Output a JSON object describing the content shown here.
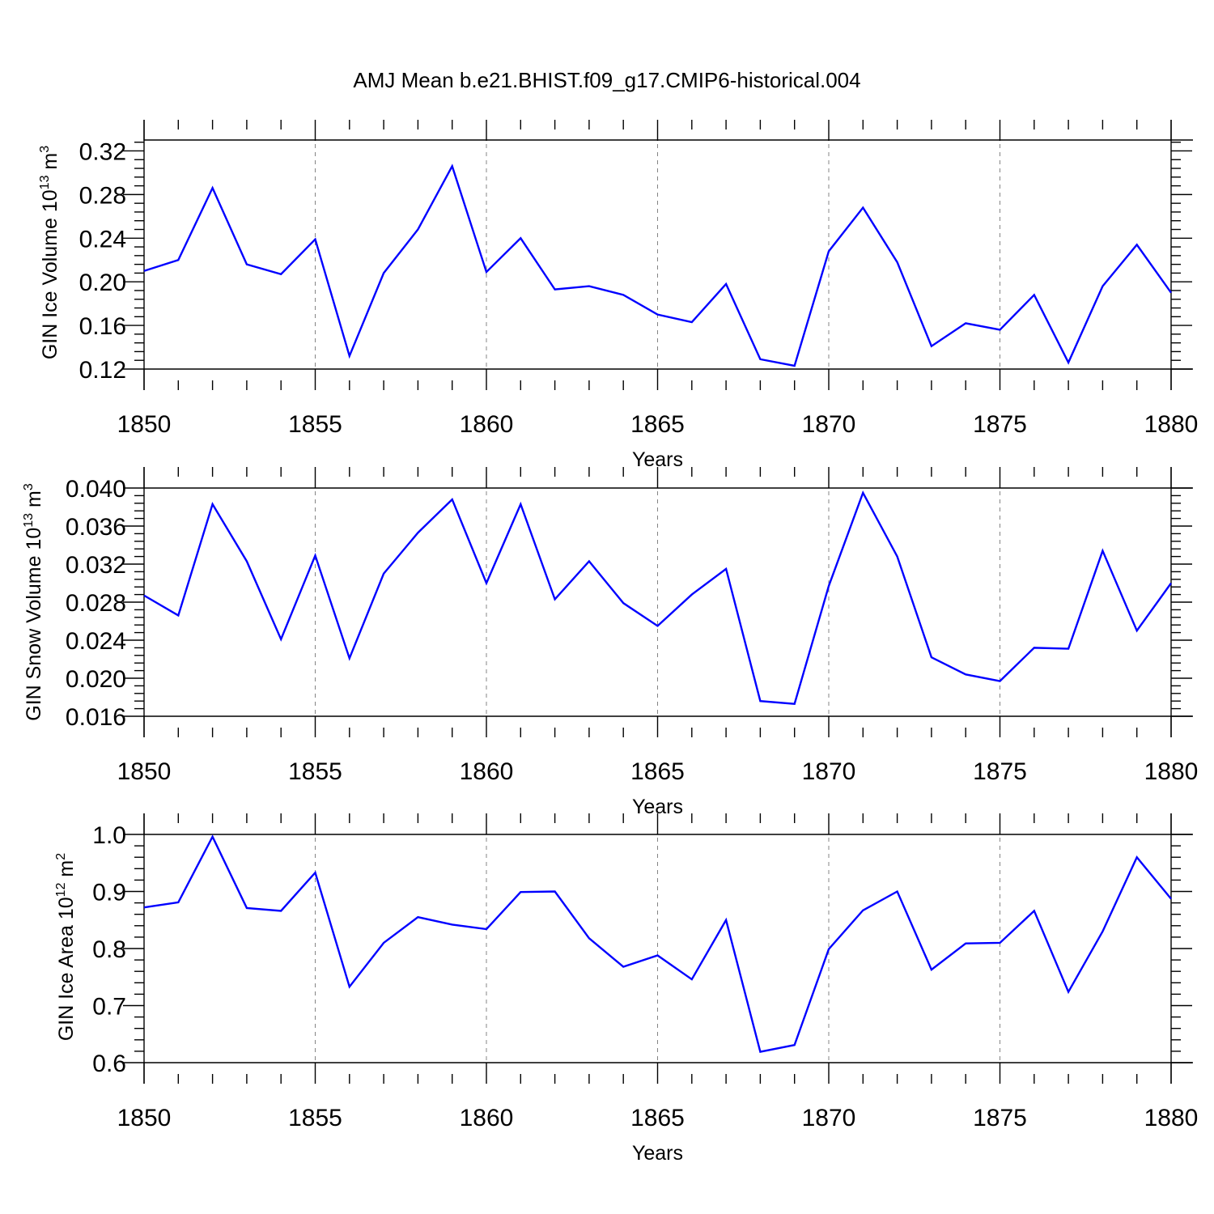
{
  "figure": {
    "title": "AMJ Mean b.e21.BHIST.f09_g17.CMIP6-historical.004"
  },
  "chart_data": [
    {
      "type": "line",
      "title": "",
      "xlabel": "Years",
      "ylabel": "GIN Ice Volume",
      "ylabel_scale": "10",
      "ylabel_exp": "13",
      "ylabel_unit": "m",
      "ylabel_unit_exp": "3",
      "xlim": [
        1850,
        1880
      ],
      "ylim": [
        0.12,
        0.33
      ],
      "x_ticks": [
        1850,
        1855,
        1860,
        1865,
        1870,
        1875,
        1880
      ],
      "x_tick_labels": [
        "1850",
        "1855",
        "1860",
        "1865",
        "1870",
        "1875",
        "1880"
      ],
      "y_ticks": [
        0.12,
        0.16,
        0.2,
        0.24,
        0.28,
        0.32
      ],
      "y_tick_labels": [
        "0.12",
        "0.16",
        "0.20",
        "0.24",
        "0.28",
        "0.32"
      ],
      "grid": "vertical dashed",
      "series": [
        {
          "name": "GIN Ice Volume",
          "color": "#0000ff",
          "x": [
            1850,
            1851,
            1852,
            1853,
            1854,
            1855,
            1856,
            1857,
            1858,
            1859,
            1860,
            1861,
            1862,
            1863,
            1864,
            1865,
            1866,
            1867,
            1868,
            1869,
            1870,
            1871,
            1872,
            1873,
            1874,
            1875,
            1876,
            1877,
            1878,
            1879,
            1880
          ],
          "values": [
            0.21,
            0.22,
            0.286,
            0.216,
            0.207,
            0.239,
            0.132,
            0.208,
            0.248,
            0.306,
            0.209,
            0.24,
            0.193,
            0.196,
            0.188,
            0.17,
            0.163,
            0.198,
            0.129,
            0.123,
            0.228,
            0.268,
            0.218,
            0.141,
            0.162,
            0.156,
            0.188,
            0.126,
            0.196,
            0.234,
            0.19
          ]
        }
      ]
    },
    {
      "type": "line",
      "title": "",
      "xlabel": "Years",
      "ylabel": "GIN Snow Volume",
      "ylabel_scale": "10",
      "ylabel_exp": "13",
      "ylabel_unit": "m",
      "ylabel_unit_exp": "3",
      "xlim": [
        1850,
        1880
      ],
      "ylim": [
        0.016,
        0.04
      ],
      "x_ticks": [
        1850,
        1855,
        1860,
        1865,
        1870,
        1875,
        1880
      ],
      "x_tick_labels": [
        "1850",
        "1855",
        "1860",
        "1865",
        "1870",
        "1875",
        "1880"
      ],
      "y_ticks": [
        0.016,
        0.02,
        0.024,
        0.028,
        0.032,
        0.036,
        0.04
      ],
      "y_tick_labels": [
        "0.016",
        "0.020",
        "0.024",
        "0.028",
        "0.032",
        "0.036",
        "0.040"
      ],
      "grid": "vertical dashed",
      "series": [
        {
          "name": "GIN Snow Volume",
          "color": "#0000ff",
          "x": [
            1850,
            1851,
            1852,
            1853,
            1854,
            1855,
            1856,
            1857,
            1858,
            1859,
            1860,
            1861,
            1862,
            1863,
            1864,
            1865,
            1866,
            1867,
            1868,
            1869,
            1870,
            1871,
            1872,
            1873,
            1874,
            1875,
            1876,
            1877,
            1878,
            1879,
            1880
          ],
          "values": [
            0.0287,
            0.0266,
            0.0383,
            0.0323,
            0.0241,
            0.0329,
            0.0221,
            0.031,
            0.0353,
            0.0388,
            0.03,
            0.0383,
            0.0283,
            0.0323,
            0.0279,
            0.0255,
            0.0288,
            0.0315,
            0.0176,
            0.0173,
            0.0297,
            0.0395,
            0.0328,
            0.0222,
            0.0204,
            0.0197,
            0.0232,
            0.0231,
            0.0334,
            0.025,
            0.03
          ]
        }
      ]
    },
    {
      "type": "line",
      "title": "",
      "xlabel": "Years",
      "ylabel": "GIN Ice Area",
      "ylabel_scale": "10",
      "ylabel_exp": "12",
      "ylabel_unit": "m",
      "ylabel_unit_exp": "2",
      "xlim": [
        1850,
        1880
      ],
      "ylim": [
        0.6,
        1.0
      ],
      "x_ticks": [
        1850,
        1855,
        1860,
        1865,
        1870,
        1875,
        1880
      ],
      "x_tick_labels": [
        "1850",
        "1855",
        "1860",
        "1865",
        "1870",
        "1875",
        "1880"
      ],
      "y_ticks": [
        0.6,
        0.7,
        0.8,
        0.9,
        1.0
      ],
      "y_tick_labels": [
        "0.6",
        "0.7",
        "0.8",
        "0.9",
        "1.0"
      ],
      "grid": "vertical dashed",
      "series": [
        {
          "name": "GIN Ice Area",
          "color": "#0000ff",
          "x": [
            1850,
            1851,
            1852,
            1853,
            1854,
            1855,
            1856,
            1857,
            1858,
            1859,
            1860,
            1861,
            1862,
            1863,
            1864,
            1865,
            1866,
            1867,
            1868,
            1869,
            1870,
            1871,
            1872,
            1873,
            1874,
            1875,
            1876,
            1877,
            1878,
            1879,
            1880
          ],
          "values": [
            0.872,
            0.881,
            0.996,
            0.871,
            0.866,
            0.933,
            0.733,
            0.81,
            0.855,
            0.842,
            0.834,
            0.899,
            0.9,
            0.818,
            0.768,
            0.788,
            0.746,
            0.85,
            0.619,
            0.631,
            0.799,
            0.867,
            0.9,
            0.763,
            0.809,
            0.81,
            0.866,
            0.724,
            0.83,
            0.96,
            0.887
          ]
        }
      ]
    }
  ]
}
